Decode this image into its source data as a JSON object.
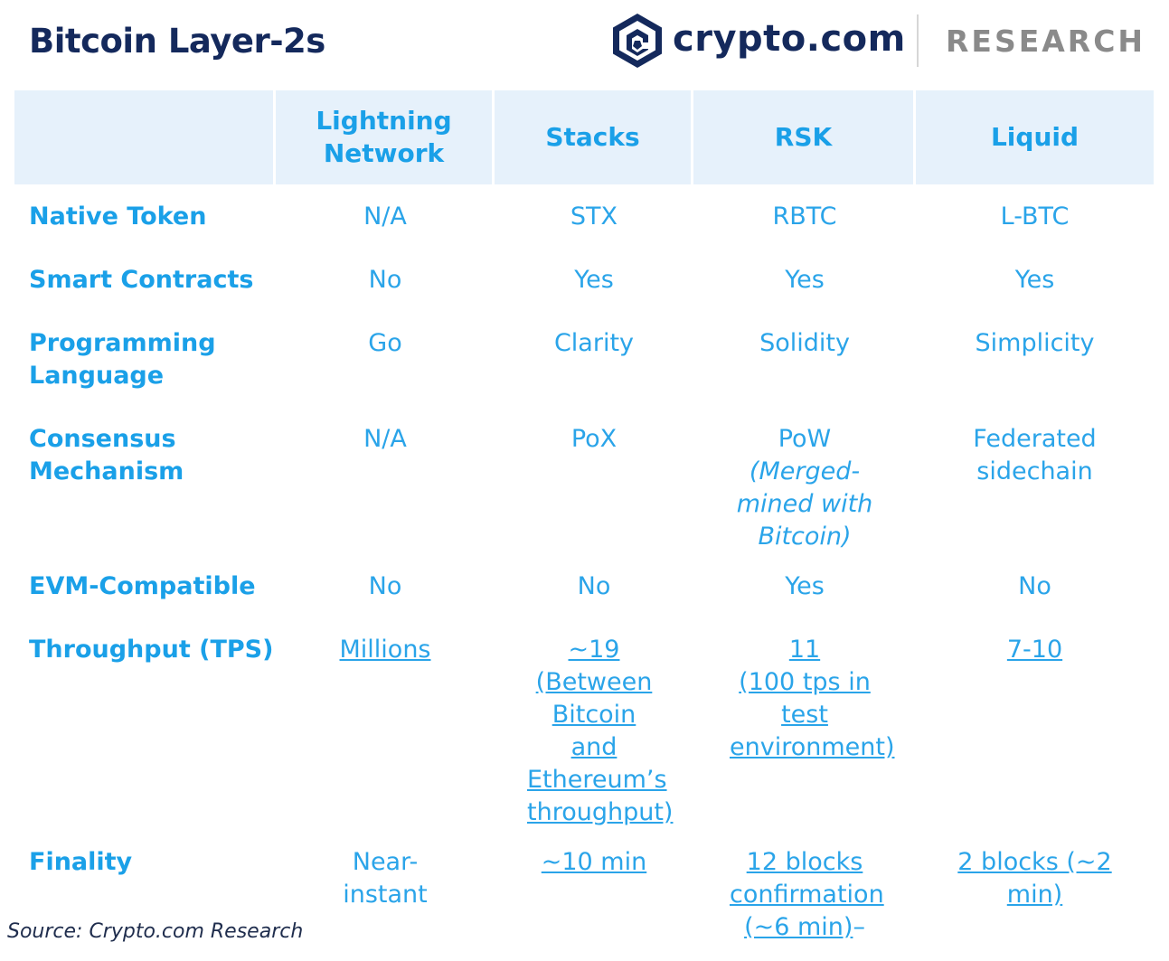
{
  "title": "Bitcoin Layer-2s",
  "brand": {
    "name": "crypto.com",
    "section": "RESEARCH"
  },
  "columns": [
    "Lightning Network",
    "Stacks",
    "RSK",
    "Liquid"
  ],
  "rows": [
    {
      "label": "Native Token",
      "cells": [
        {
          "text": "N/A"
        },
        {
          "text": "STX"
        },
        {
          "text": "RBTC"
        },
        {
          "text": "L-BTC"
        }
      ]
    },
    {
      "label": "Smart Contracts",
      "cells": [
        {
          "text": "No"
        },
        {
          "text": "Yes"
        },
        {
          "text": "Yes"
        },
        {
          "text": "Yes"
        }
      ]
    },
    {
      "label": "Programming Language",
      "cells": [
        {
          "text": "Go"
        },
        {
          "text": "Clarity"
        },
        {
          "text": "Solidity"
        },
        {
          "text": "Simplicity"
        }
      ]
    },
    {
      "label": "Consensus Mechanism",
      "cells": [
        {
          "text": "N/A"
        },
        {
          "text": "PoX"
        },
        {
          "text": "PoW",
          "note": "(Merged-mined with Bitcoin)"
        },
        {
          "text": "Federated sidechain"
        }
      ]
    },
    {
      "label": "EVM-Compatible",
      "cells": [
        {
          "text": "No"
        },
        {
          "text": "No"
        },
        {
          "text": "Yes"
        },
        {
          "text": "No"
        }
      ]
    },
    {
      "label": "Throughput (TPS)",
      "cells": [
        {
          "text": "Millions",
          "link": true
        },
        {
          "text": "~19",
          "note": "(Between Bitcoin and Ethereum’s throughput)",
          "link": true
        },
        {
          "text": "11",
          "note": "(100 tps in test environment)",
          "link": true
        },
        {
          "text": "7-10",
          "link": true
        }
      ]
    },
    {
      "label": "Finality",
      "cells": [
        {
          "text": "Near-instant"
        },
        {
          "text": "~10 min",
          "link": true
        },
        {
          "text": "12 blocks confirmation (~6 min)",
          "link": true,
          "suffix": "–"
        },
        {
          "text": "2 blocks (~2 min)",
          "link": true
        }
      ]
    }
  ],
  "source": "Source: Crypto.com Research",
  "colors": {
    "title": "#14295c",
    "accent": "#1aa0e8",
    "header_bg": "#e6f1fb"
  }
}
